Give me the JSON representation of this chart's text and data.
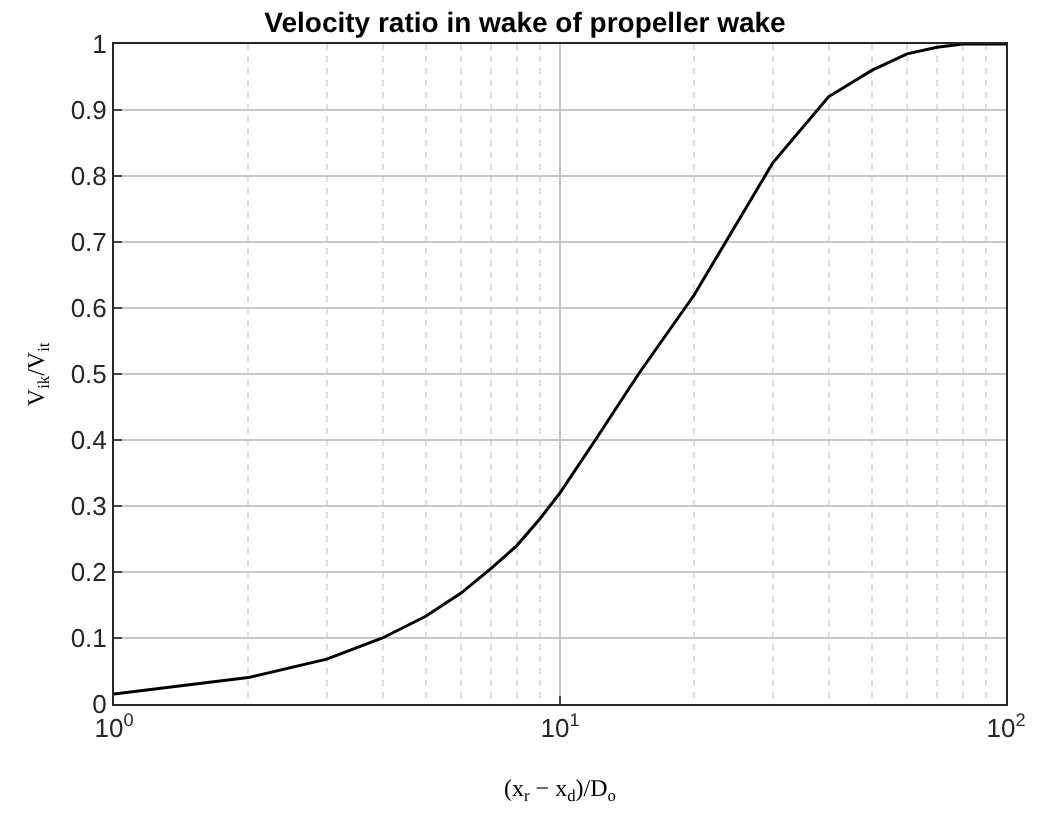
{
  "chart_data": {
    "type": "line",
    "title": "Velocity ratio in wake of propeller wake",
    "xlabel": "(x$_{r}$ − x$_{d}$)/D$_{o}$",
    "ylabel": "V$_{ik}$/V$_{it}$",
    "x": [
      1,
      2,
      3,
      4,
      5,
      6,
      7,
      8,
      9,
      10,
      12,
      15,
      20,
      25,
      30,
      40,
      50,
      60,
      70,
      80,
      100
    ],
    "series": [
      {
        "color": "#000000",
        "values": [
          0.015,
          0.04,
          0.068,
          0.1,
          0.133,
          0.168,
          0.205,
          0.24,
          0.28,
          0.32,
          0.4,
          0.5,
          0.62,
          0.73,
          0.82,
          0.92,
          0.96,
          0.985,
          0.995,
          1.0,
          1.0
        ]
      }
    ],
    "log": "x",
    "xlim": [
      1,
      100
    ],
    "ylim": [
      0,
      1
    ],
    "xticks": [
      {
        "value": 1,
        "label": "10$^{0}$"
      },
      {
        "value": 10,
        "label": "10$^{1}$"
      },
      {
        "value": 100,
        "label": "10$^{2}$"
      }
    ],
    "yticks": [
      0,
      0.1,
      0.2,
      0.3,
      0.4,
      0.5,
      0.6,
      0.7,
      0.8,
      0.9,
      1
    ],
    "grid": true,
    "marker": "none",
    "line_style": "solid"
  }
}
